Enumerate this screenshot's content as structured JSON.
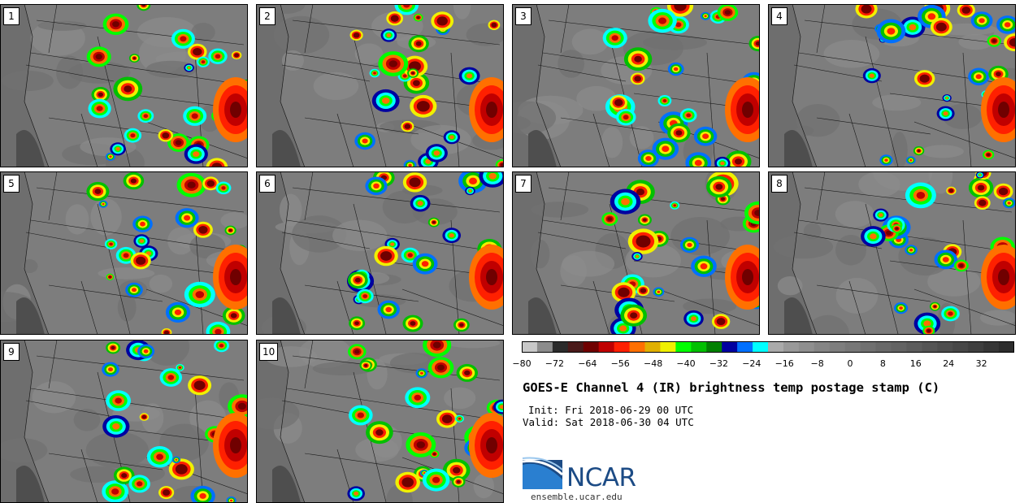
{
  "panels": [
    {
      "label": "1"
    },
    {
      "label": "2"
    },
    {
      "label": "3"
    },
    {
      "label": "4"
    },
    {
      "label": "5"
    },
    {
      "label": "6"
    },
    {
      "label": "7"
    },
    {
      "label": "8"
    },
    {
      "label": "9"
    },
    {
      "label": "10"
    }
  ],
  "colorbar": {
    "colors": [
      "#c8c8c8",
      "#8c8c8c",
      "#2b2b2b",
      "#4a1a1a",
      "#700000",
      "#c00000",
      "#ff2000",
      "#ff7000",
      "#e0b000",
      "#f0f000",
      "#00ff00",
      "#00c000",
      "#008000",
      "#0000a0",
      "#0070ff",
      "#00ffff",
      "#aaaaaa",
      "#999999",
      "#8f8f8f",
      "#858585",
      "#7e7e7e",
      "#777777",
      "#707070",
      "#696969",
      "#636363",
      "#5c5c5c",
      "#555555",
      "#4e4e4e",
      "#474747",
      "#3f3f3f",
      "#363636",
      "#2c2c2c"
    ],
    "ticks": [
      "−80",
      "−72",
      "−64",
      "−56",
      "−48",
      "−40",
      "−32",
      "−24",
      "−16",
      "−8",
      "0",
      "8",
      "16",
      "24",
      "32"
    ]
  },
  "title": "GOES-E Channel 4 (IR) brightness temp postage stamp (C)",
  "init": "Init: Fri 2018-06-29 00 UTC",
  "valid": "Valid: Sat 2018-06-30 04 UTC",
  "logo": {
    "text": "NCAR",
    "colors": {
      "blue": "#1c4b85",
      "light": "#5aa0dc"
    }
  },
  "site": "ensemble.ucar.edu"
}
